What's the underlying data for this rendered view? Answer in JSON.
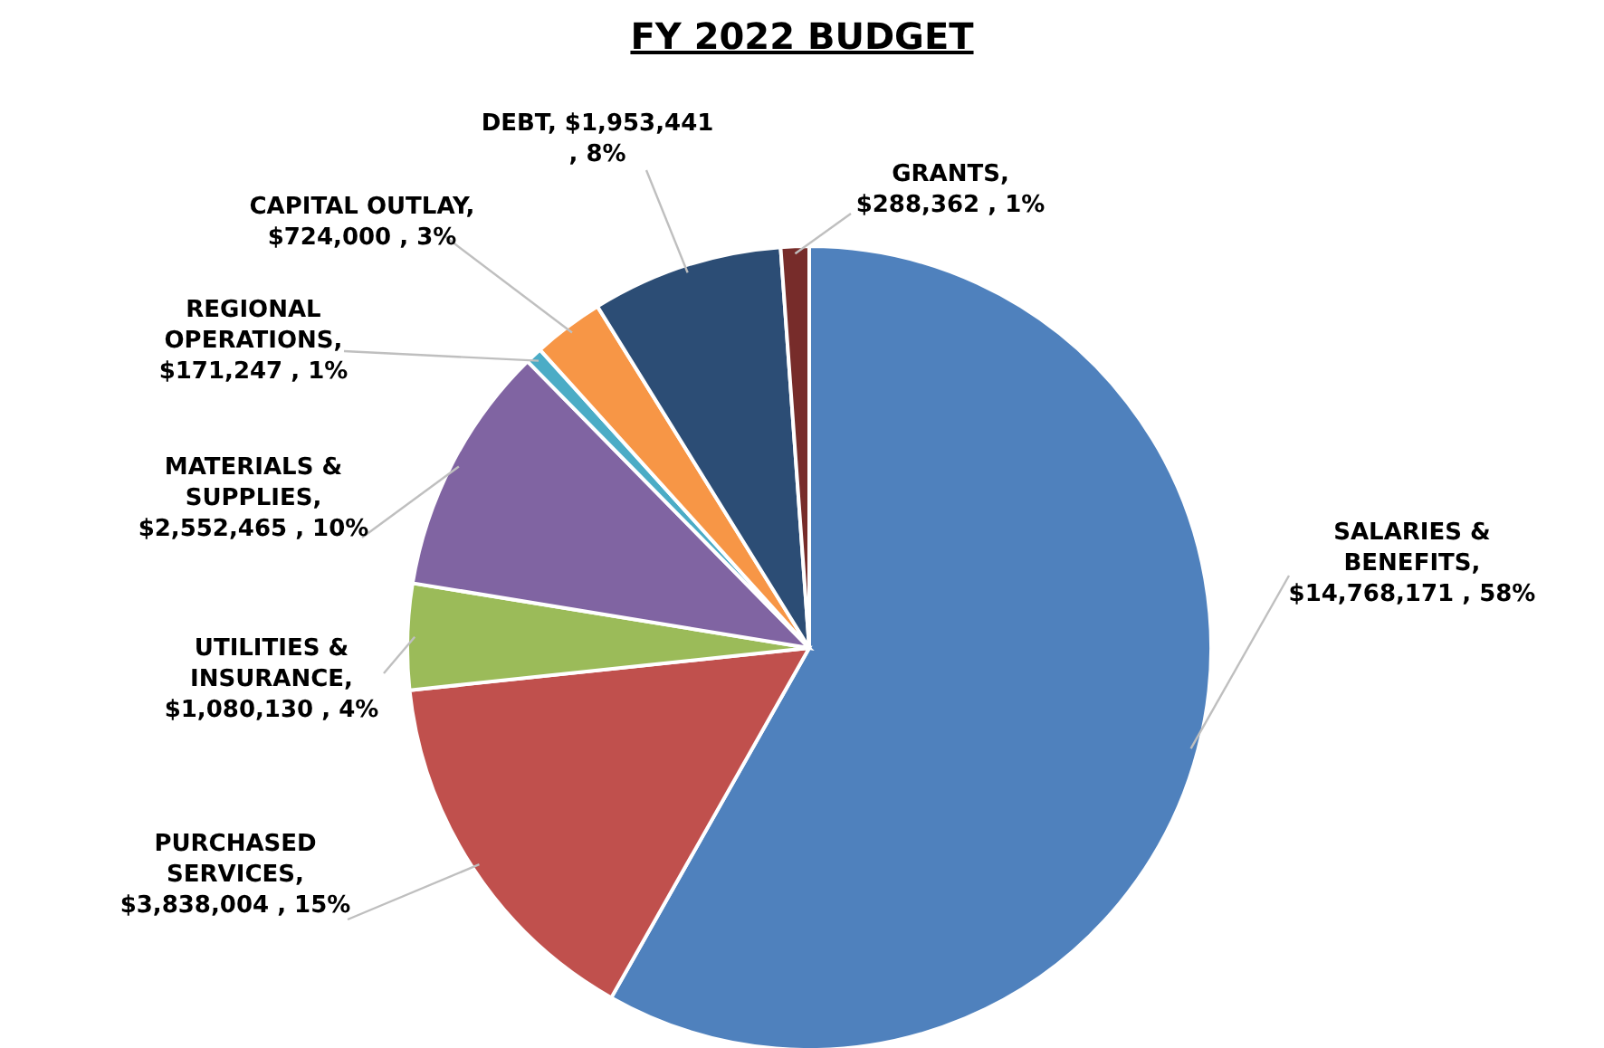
{
  "chart_data": {
    "type": "pie",
    "title": "FY 2022 BUDGET",
    "categories": [
      "SALARIES & BENEFITS",
      "PURCHASED SERVICES",
      "UTILITIES & INSURANCE",
      "MATERIALS & SUPPLIES",
      "REGIONAL OPERATIONS",
      "CAPITAL OUTLAY",
      "DEBT",
      "GRANTS"
    ],
    "values": [
      14768171,
      3838004,
      1080130,
      2552465,
      171247,
      724000,
      1953441,
      288362
    ],
    "value_labels": [
      ", $14,768,171 , 58%",
      ", $3,838,004 , 15%",
      ", $1,080,130 , 4%",
      ", $2,552,465 , 10%",
      ", $171,247 , 1%",
      ", $724,000 , 3%",
      ", $1,953,441 , 8%",
      ", $288,362 , 1%"
    ],
    "colors": [
      "#4f81bd",
      "#c0504d",
      "#9bbb59",
      "#8064a2",
      "#4bacc6",
      "#f79646",
      "#2c4d75",
      "#772c2a"
    ]
  }
}
